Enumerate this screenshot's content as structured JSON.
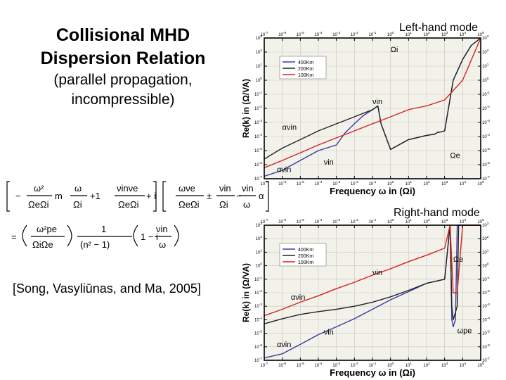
{
  "slide": {
    "title_line1": "Collisional MHD",
    "title_line2": "Dispersion Relation",
    "subtitle_line1": "(parallel propagation,",
    "subtitle_line2": "incompressible)",
    "citation": "[Song, Vasyliūnas, and Ma, 2005]"
  },
  "equation": {
    "plus_one": "+1",
    "plus_i": "+ i",
    "times": "m",
    "pm": "±",
    "equals": "=",
    "one_minus_i": "1 − i",
    "alpha": "α"
  },
  "chart_data": [
    {
      "type": "line",
      "title": "Left-hand mode",
      "xlabel": "Frequency ω in (Ωi)",
      "ylabel": "Re(k) in (Ω/VA)",
      "xscale": "log",
      "yscale": "log",
      "xlim": [
        1e-07,
        100000.0
      ],
      "ylim": [
        1e-07,
        1000.0
      ],
      "x_tick_labels": [
        "10-7",
        "10-6",
        "10-5",
        "10-4",
        "10-3",
        "10-2",
        "10-1",
        "100",
        "101",
        "102",
        "103",
        "104",
        "105"
      ],
      "y_tick_labels": [
        "10-7",
        "10-6",
        "10-5",
        "10-4",
        "10-3",
        "10-2",
        "10-1",
        "100",
        "101",
        "102",
        "103"
      ],
      "legend": {
        "placement": "top-left",
        "entries": [
          "400Km",
          "200Km",
          "100Km"
        ]
      },
      "series": [
        {
          "name": "400Km",
          "color": "#3a3aa6",
          "x": [
            1e-07,
            1e-06,
            1e-05,
            0.0001,
            0.001,
            0.003,
            0.01,
            0.03,
            0.1,
            0.2,
            0.3,
            1,
            10,
            100,
            300,
            400,
            500,
            1000,
            3000,
            10000,
            30000,
            100000
          ],
          "y": [
            1.5e-07,
            4e-07,
            2e-06,
            1e-05,
            2.5e-05,
            0.00018,
            0.0008,
            0.003,
            0.008,
            0.015,
            0.0008,
            1.2e-05,
            6e-05,
            0.00012,
            0.00015,
            0.0002,
            0.0002,
            0.00025,
            1,
            30,
            300,
            1000
          ]
        },
        {
          "name": "200Km",
          "color": "#222222",
          "x": [
            1e-07,
            1e-06,
            1e-05,
            0.0001,
            0.001,
            0.01,
            0.1,
            0.2,
            0.3,
            1,
            10,
            100,
            300,
            400,
            500,
            1000,
            3000,
            10000,
            30000,
            100000
          ],
          "y": [
            2.5e-06,
            1.5e-05,
            6e-05,
            0.00025,
            0.0008,
            0.0025,
            0.008,
            0.015,
            0.0008,
            1.2e-05,
            6e-05,
            0.00012,
            0.00015,
            0.0002,
            0.0002,
            0.00025,
            1,
            30,
            300,
            1000
          ]
        },
        {
          "name": "100Km",
          "color": "#d42020",
          "x": [
            1e-07,
            1e-06,
            1e-05,
            0.0001,
            0.001,
            0.01,
            0.1,
            1,
            10,
            20,
            100,
            1000,
            10000,
            100000
          ],
          "y": [
            6e-07,
            2e-06,
            7e-06,
            2.5e-05,
            8e-05,
            0.00025,
            0.0008,
            0.0025,
            0.008,
            0.01,
            0.015,
            0.04,
            1,
            1000
          ]
        }
      ],
      "annotations": [
        {
          "text": "Ωi",
          "x": 1,
          "y": 100
        },
        {
          "text": "νin",
          "x": 0.1,
          "y": 0.02
        },
        {
          "text": "ανin",
          "x": 1e-06,
          "y": 0.0003
        },
        {
          "text": "νin",
          "x": 0.0002,
          "y": 1e-06
        },
        {
          "text": "ανin",
          "x": 5e-07,
          "y": 3e-07
        },
        {
          "text": "Ωe",
          "x": 2000,
          "y": 3e-06
        }
      ]
    },
    {
      "type": "line",
      "title": "Right-hand mode",
      "xlabel": "Frequency ω in (Ωi)",
      "ylabel": "Re(k) in (Ω/VA)",
      "xscale": "log",
      "yscale": "log",
      "xlim": [
        1e-07,
        100000.0
      ],
      "ylim": [
        1e-07,
        1000.0
      ],
      "x_tick_labels": [
        "10-7",
        "10-6",
        "10-5",
        "10-4",
        "10-3",
        "10-2",
        "10-1",
        "100",
        "101",
        "102",
        "103",
        "104",
        "105"
      ],
      "y_tick_labels": [
        "10-7",
        "10-6",
        "10-5",
        "10-4",
        "10-3",
        "10-2",
        "10-1",
        "100",
        "101",
        "102",
        "103"
      ],
      "legend": {
        "placement": "top-left",
        "entries": [
          "400Km",
          "200Km",
          "100Km"
        ]
      },
      "series": [
        {
          "name": "400Km",
          "color": "#3a3aa6",
          "x": [
            1e-07,
            1e-06,
            1e-05,
            0.0001,
            0.001,
            0.01,
            0.1,
            1,
            10,
            100,
            1000,
            2000,
            2500,
            3000,
            4000,
            5000,
            10000,
            100000
          ],
          "y": [
            1.5e-07,
            3e-07,
            1.5e-06,
            8e-06,
            3e-05,
            0.00012,
            0.0006,
            0.003,
            0.012,
            0.05,
            0.1,
            1000,
            0.0001,
            3e-05,
            0.0001,
            1000,
            1000,
            1000
          ]
        },
        {
          "name": "200Km",
          "color": "#222222",
          "x": [
            1e-07,
            1e-06,
            1e-05,
            0.0001,
            0.001,
            0.01,
            0.1,
            1,
            10,
            100,
            1000,
            2000,
            2500,
            3000,
            5000,
            6000,
            10000,
            100000
          ],
          "y": [
            5e-05,
            0.00012,
            0.00025,
            0.0004,
            0.0006,
            0.001,
            0.002,
            0.005,
            0.015,
            0.05,
            0.1,
            1000,
            0.001,
            0.0001,
            0.001,
            1000,
            1000,
            1000
          ]
        },
        {
          "name": "100Km",
          "color": "#d42020",
          "x": [
            1e-07,
            1e-06,
            1e-05,
            0.0001,
            0.001,
            0.01,
            0.1,
            1,
            10,
            100,
            1000,
            2000,
            3000,
            5000,
            10000,
            100000
          ],
          "y": [
            0.0002,
            0.0006,
            0.002,
            0.006,
            0.02,
            0.06,
            0.2,
            0.6,
            2,
            6,
            20,
            1000,
            0.01,
            0.01,
            1000,
            1000
          ]
        }
      ],
      "annotations": [
        {
          "text": "νin",
          "x": 0.1,
          "y": 0.2
        },
        {
          "text": "ανin",
          "x": 3e-06,
          "y": 0.003
        },
        {
          "text": "Ωe",
          "x": 3000,
          "y": 2
        },
        {
          "text": "ωpe",
          "x": 5000,
          "y": 1e-05
        },
        {
          "text": "ανin",
          "x": 5e-07,
          "y": 1e-06
        },
        {
          "text": "νin",
          "x": 0.0002,
          "y": 8e-06
        }
      ]
    }
  ]
}
